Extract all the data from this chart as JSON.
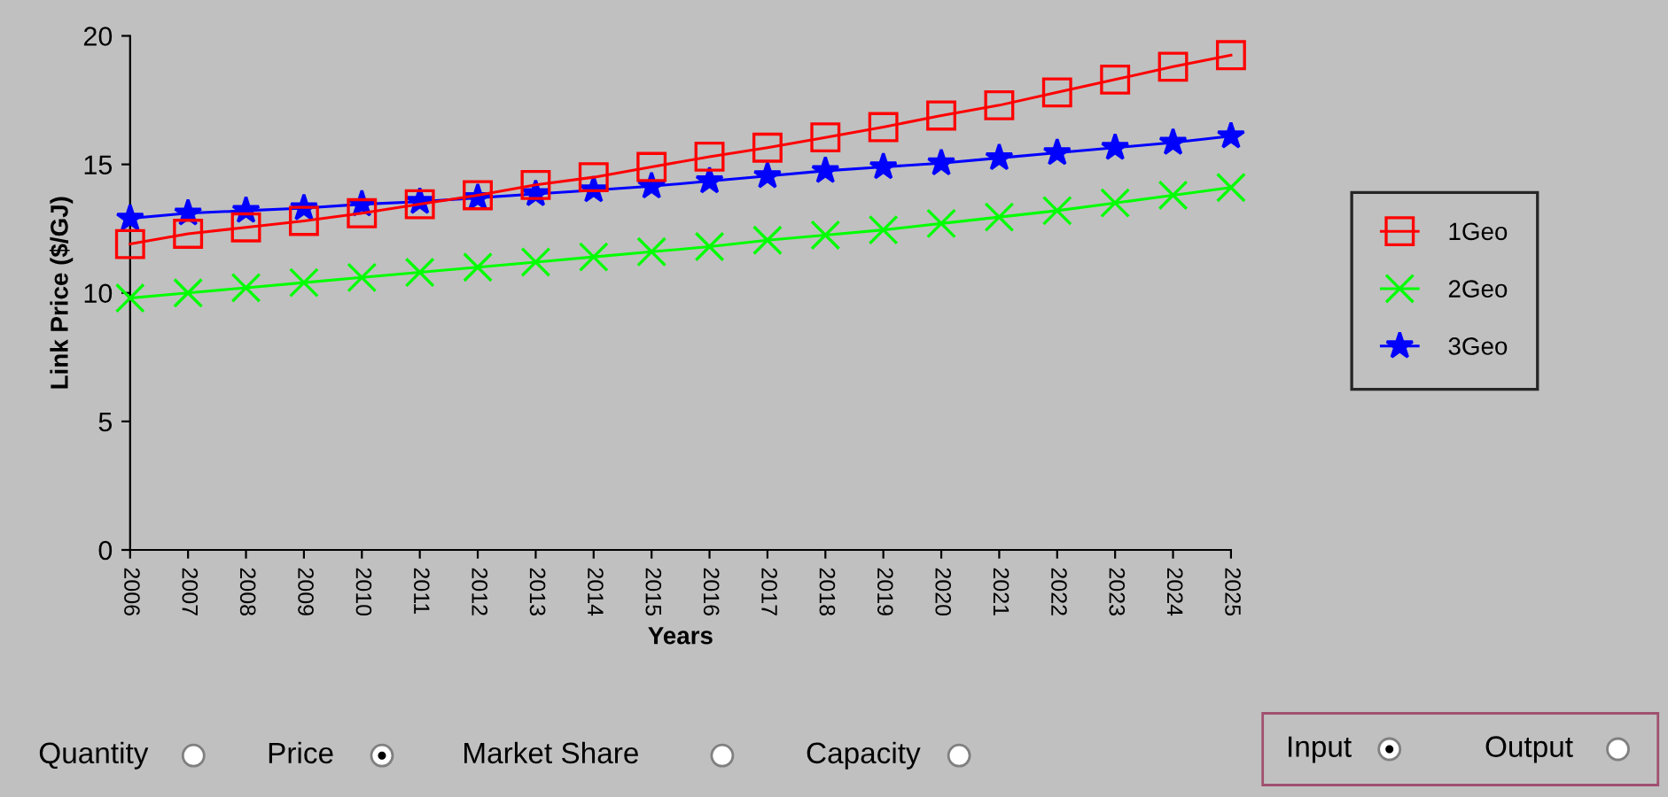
{
  "chart_data": {
    "type": "line",
    "xlabel": "Years",
    "ylabel": "Link Price ($/GJ)",
    "categories": [
      "2006",
      "2007",
      "2008",
      "2009",
      "2010",
      "2011",
      "2012",
      "2013",
      "2014",
      "2015",
      "2016",
      "2017",
      "2018",
      "2019",
      "2020",
      "2021",
      "2022",
      "2023",
      "2024",
      "2025"
    ],
    "series": [
      {
        "name": "1Geo",
        "color": "#ff0000",
        "marker": "square",
        "values": [
          11.9,
          12.3,
          12.55,
          12.8,
          13.1,
          13.45,
          13.8,
          14.2,
          14.5,
          14.9,
          15.3,
          15.65,
          16.05,
          16.45,
          16.9,
          17.3,
          17.8,
          18.3,
          18.8,
          19.25
        ]
      },
      {
        "name": "2Geo",
        "color": "#00ff00",
        "marker": "cross",
        "values": [
          9.8,
          10.0,
          10.2,
          10.4,
          10.6,
          10.8,
          11.0,
          11.2,
          11.4,
          11.6,
          11.8,
          12.05,
          12.25,
          12.45,
          12.7,
          12.95,
          13.2,
          13.5,
          13.8,
          14.1
        ]
      },
      {
        "name": "3Geo",
        "color": "#0000ff",
        "marker": "star",
        "values": [
          12.9,
          13.1,
          13.2,
          13.3,
          13.45,
          13.55,
          13.7,
          13.85,
          14.0,
          14.15,
          14.35,
          14.55,
          14.75,
          14.9,
          15.05,
          15.25,
          15.45,
          15.65,
          15.85,
          16.1
        ]
      }
    ],
    "ylim": [
      0,
      20
    ],
    "yticks": [
      0,
      5,
      10,
      15,
      20
    ],
    "grid": false,
    "legend": "right",
    "annotations": [
      "Quantity",
      "Price",
      "Market Share",
      "Capacity",
      "Input",
      "Output"
    ]
  }
}
